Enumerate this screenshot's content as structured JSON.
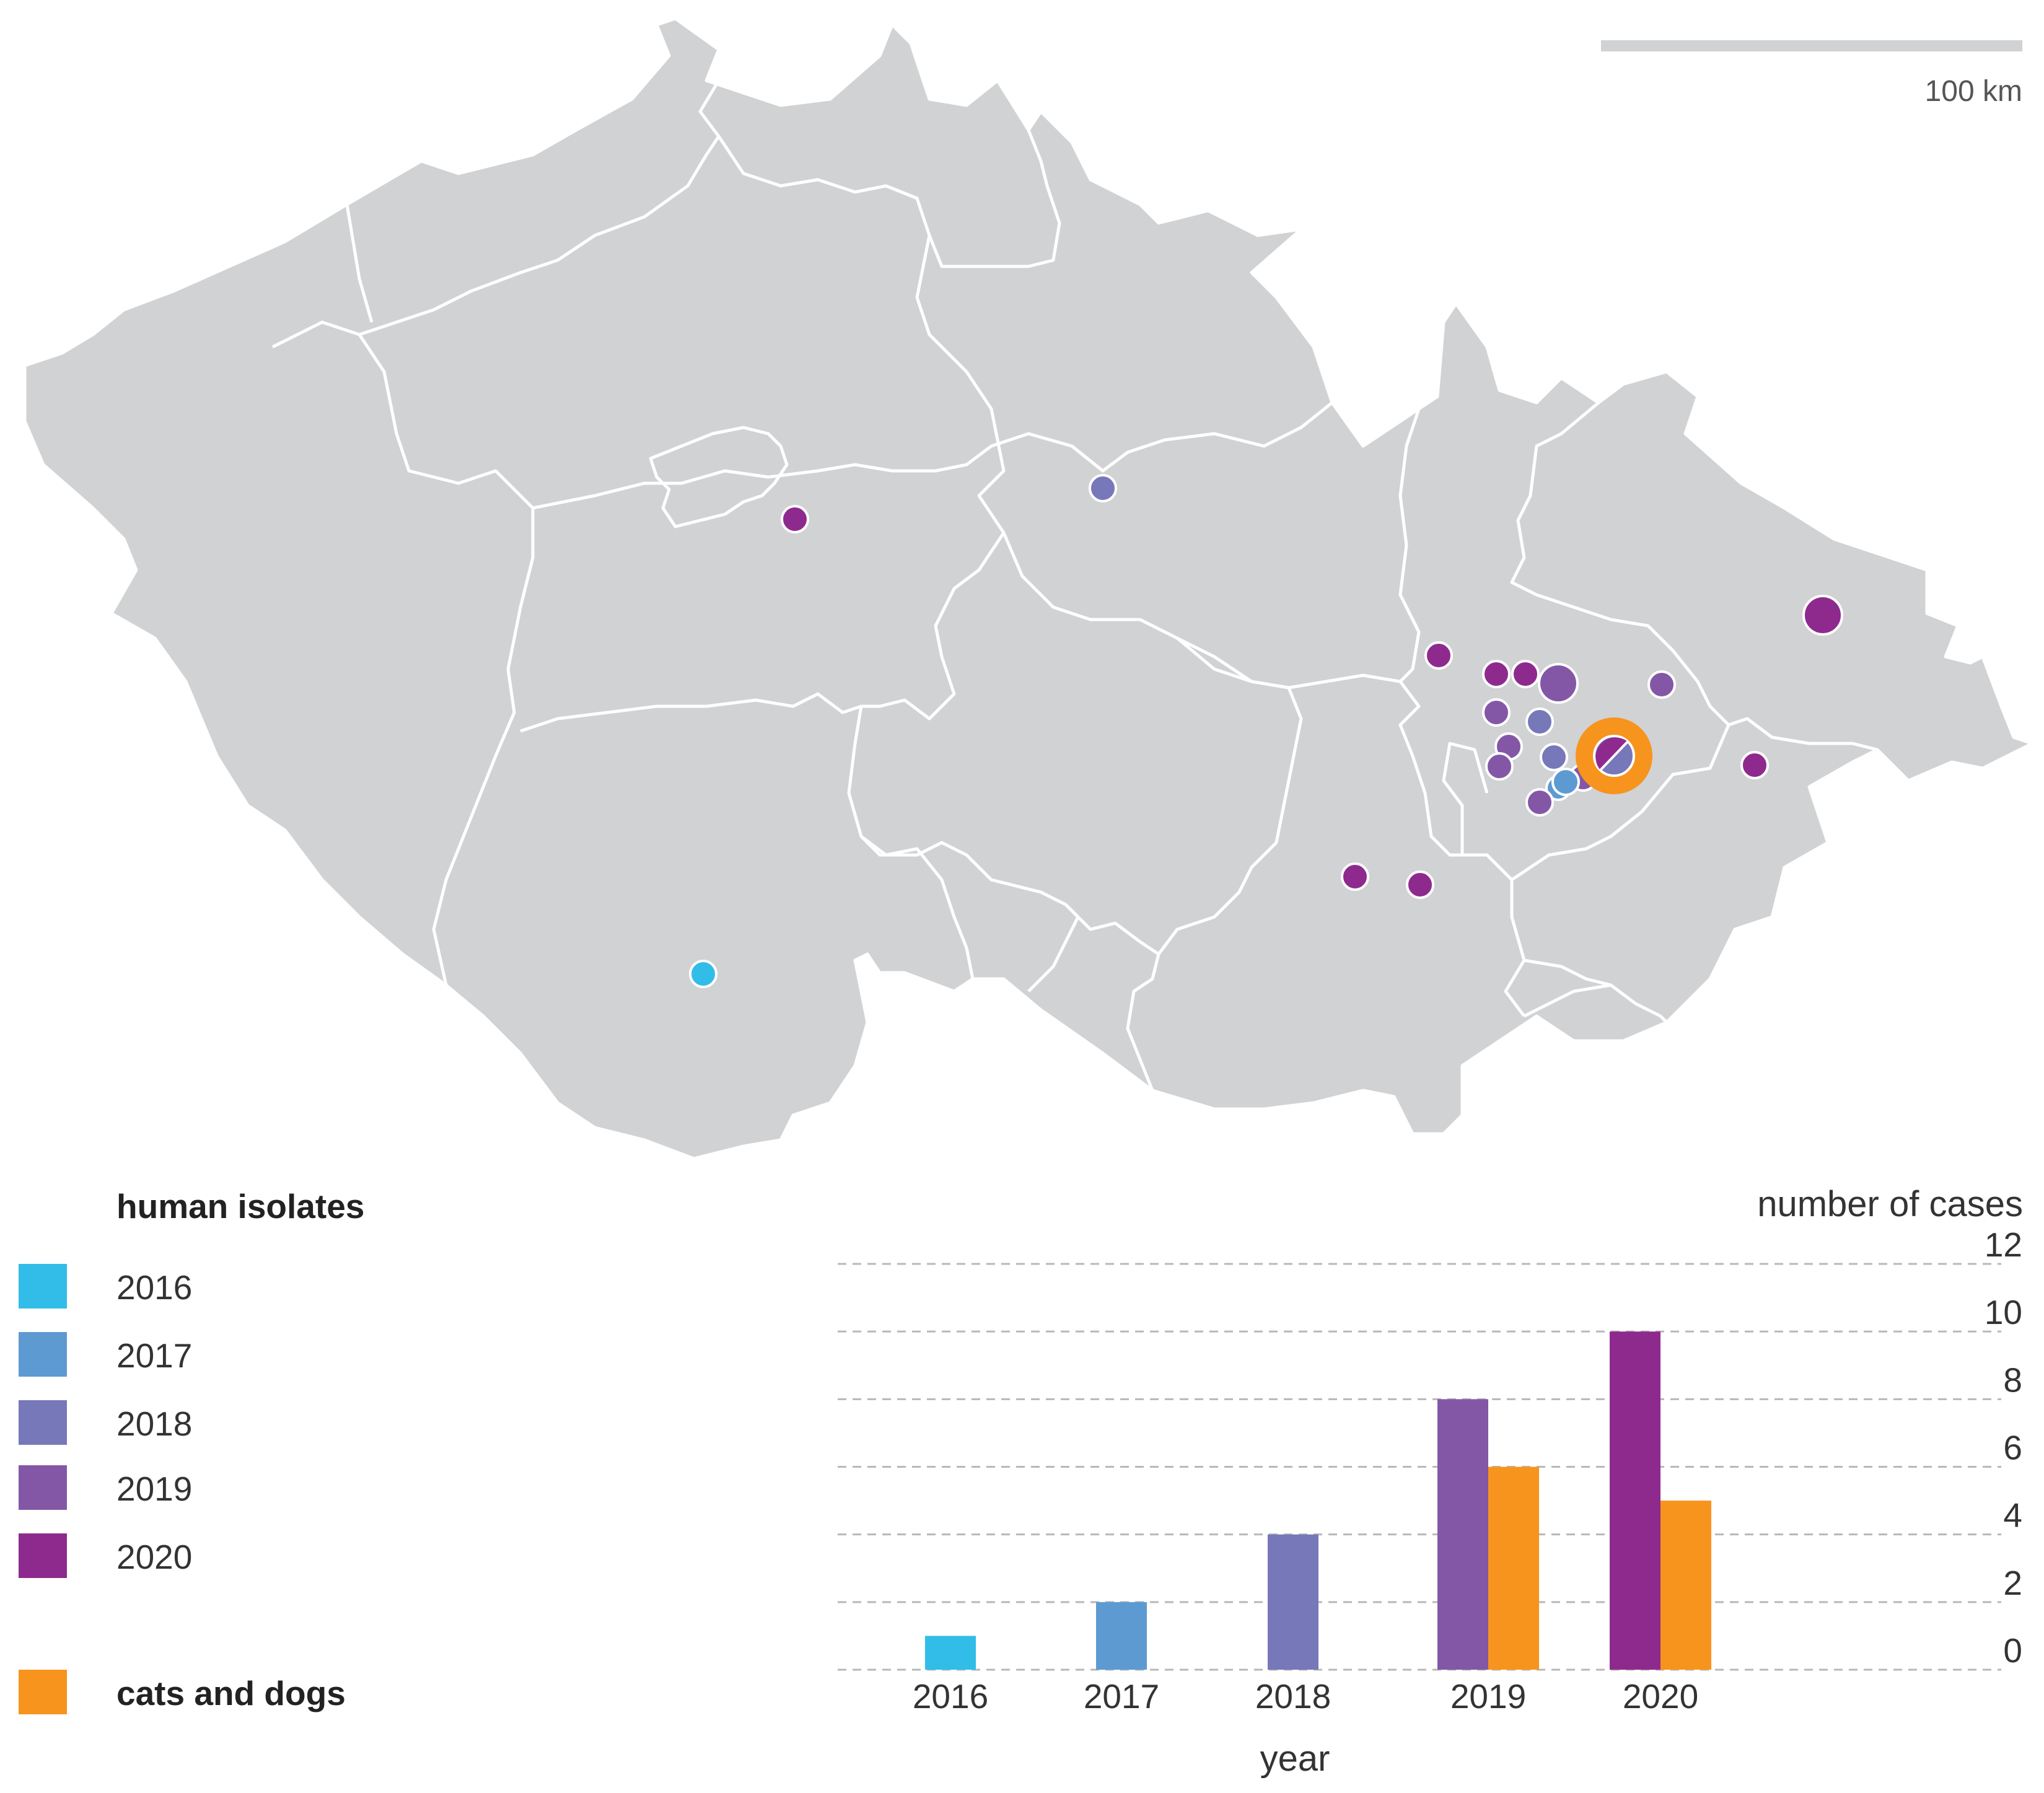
{
  "map": {
    "scale_bar_label": "100 km",
    "land_color": "#d1d2d4",
    "border_color": "#ffffff"
  },
  "legend": {
    "human_title": "human isolates",
    "items": [
      {
        "label": "2016",
        "color": "#31bde8"
      },
      {
        "label": "2017",
        "color": "#5e9ad2"
      },
      {
        "label": "2018",
        "color": "#7778b9"
      },
      {
        "label": "2019",
        "color": "#8357a6"
      },
      {
        "label": "2020",
        "color": "#8e2a8e"
      }
    ],
    "animal_label": "cats and dogs",
    "animal_color": "#f7941d"
  },
  "chart_data": {
    "type": "bar",
    "categories": [
      "2016",
      "2017",
      "2018",
      "2019",
      "2020"
    ],
    "series": [
      {
        "name": "human isolates",
        "values": [
          1,
          2,
          4,
          8,
          10
        ],
        "colors": [
          "#31bde8",
          "#5e9ad2",
          "#7778b9",
          "#8357a6",
          "#8e2a8e"
        ]
      },
      {
        "name": "cats and dogs",
        "values": [
          0,
          0,
          0,
          6,
          5
        ],
        "color": "#f7941d"
      }
    ],
    "ylim": [
      0,
      12
    ],
    "yticks": [
      "0",
      "2",
      "4",
      "6",
      "8",
      "10",
      "12"
    ],
    "ylabel": "number of cases",
    "xlabel": "year",
    "grid": true,
    "y_axis_side": "right"
  }
}
